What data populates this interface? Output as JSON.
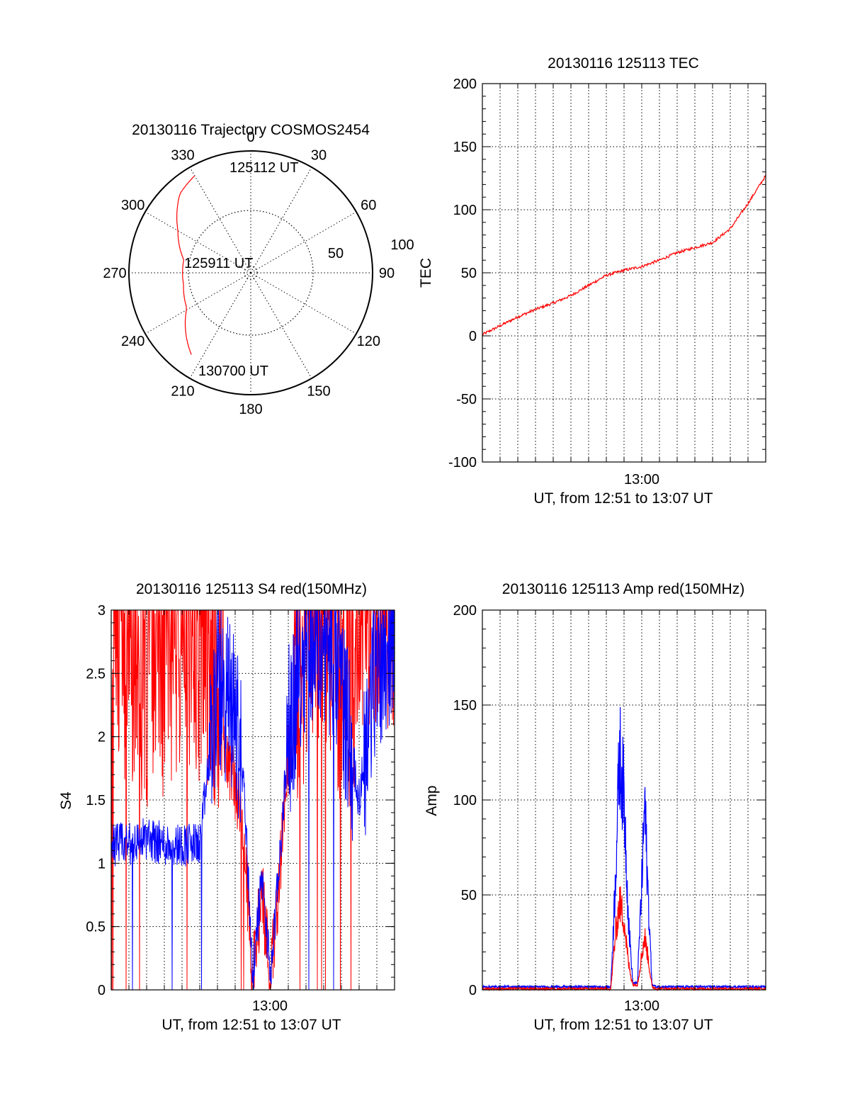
{
  "colors": {
    "red": "#ff0000",
    "blue": "#0000ff",
    "axis": "#000000"
  },
  "trajectory": {
    "title": "20130116 Trajectory COSMOS2454",
    "azimuth_labels": [
      "0",
      "30",
      "60",
      "90",
      "120",
      "150",
      "180",
      "210",
      "240",
      "270",
      "300",
      "330"
    ],
    "elevation_labels": [
      "50",
      "100"
    ],
    "start_label": "125112 UT",
    "mid_label": "125911 UT",
    "end_label": "130700 UT",
    "track": {
      "azimuth_deg": [
        330,
        318,
        300,
        281,
        270,
        260,
        241,
        216
      ],
      "zenith_norm": [
        0.92,
        0.87,
        0.69,
        0.56,
        0.56,
        0.56,
        0.6,
        0.83
      ]
    },
    "rings": [
      "solid",
      "dotted",
      "dotted"
    ]
  },
  "charts": {
    "tec": {
      "title": "20130116 125113 TEC",
      "ylabel": "TEC",
      "xlabel": "UT, from 12:51 to 13:07 UT",
      "xtick_label": "13:00",
      "yticks": [
        "200",
        "150",
        "100",
        "50",
        "0",
        "-50",
        "-100"
      ]
    },
    "s4": {
      "title": "20130116 125113 S4 red(150MHz)",
      "ylabel": "S4",
      "xlabel": "UT, from 12:51 to 13:07 UT",
      "xtick_label": "13:00",
      "yticks": [
        "3",
        "2.5",
        "2",
        "1.5",
        "1",
        "0.5",
        "0"
      ]
    },
    "amp": {
      "title": "20130116 125113 Amp red(150MHz)",
      "ylabel": "Amp",
      "xlabel": "UT, from 12:51 to 13:07 UT",
      "xtick_label": "13:00",
      "yticks": [
        "200",
        "150",
        "100",
        "50",
        "0"
      ]
    }
  },
  "chart_data": [
    {
      "type": "line",
      "title": "20130116 125113 TEC",
      "xlabel": "UT, from 12:51 to 13:07 UT",
      "ylabel": "TEC",
      "xlim": [
        "12:51",
        "13:07"
      ],
      "ylim": [
        -100,
        200
      ],
      "grid": true,
      "series": [
        {
          "color": "red",
          "x": [
            "12:51",
            "12:52",
            "12:53",
            "12:54",
            "12:55",
            "12:56",
            "12:57",
            "12:58",
            "12:59",
            "13:00",
            "13:01",
            "13:02",
            "13:03",
            "13:04",
            "13:05",
            "13:06",
            "13:07"
          ],
          "y": [
            1,
            8,
            15,
            21,
            26,
            32,
            40,
            48,
            52,
            55,
            60,
            66,
            70,
            74,
            85,
            105,
            127
          ]
        }
      ]
    },
    {
      "type": "line",
      "title": "20130116 125113 S4 red(150MHz)",
      "xlabel": "UT, from 12:51 to 13:07 UT",
      "ylabel": "S4",
      "xlim": [
        "12:51",
        "13:07"
      ],
      "ylim": [
        0,
        3
      ],
      "grid": true,
      "series": [
        {
          "color": "red",
          "x": [
            "12:51:00",
            "12:52:00",
            "12:53:00",
            "12:54:00",
            "12:55:00",
            "12:56:00",
            "12:57:00",
            "12:58:00",
            "12:58:30",
            "12:59:00",
            "12:59:30",
            "13:00:00",
            "13:00:30",
            "13:01:00",
            "13:02:00",
            "13:03:00",
            "13:04:00",
            "13:05:00",
            "13:06:00",
            "13:07:00"
          ],
          "y": [
            2.6,
            2.4,
            2.2,
            2.3,
            2.5,
            2.4,
            2.2,
            1.6,
            1.2,
            0.1,
            0.8,
            0.1,
            0.9,
            1.8,
            2.5,
            2.7,
            2.2,
            2.3,
            2.9,
            2.8
          ]
        },
        {
          "color": "blue",
          "x": [
            "12:51:00",
            "12:52:00",
            "12:53:00",
            "12:54:00",
            "12:55:00",
            "12:56:00",
            "12:57:00",
            "12:58:00",
            "12:58:30",
            "12:59:00",
            "12:59:30",
            "13:00:00",
            "13:00:30",
            "13:01:00",
            "13:02:00",
            "13:03:00",
            "13:04:00",
            "13:05:00",
            "13:06:00",
            "13:07:00"
          ],
          "y": [
            1.15,
            1.15,
            1.2,
            1.15,
            1.15,
            1.15,
            2.4,
            2.2,
            1.6,
            0.1,
            0.9,
            0.1,
            1.0,
            2.0,
            2.8,
            2.8,
            2.4,
            1.5,
            2.6,
            2.8
          ]
        }
      ]
    },
    {
      "type": "line",
      "title": "20130116 125113 Amp red(150MHz)",
      "xlabel": "UT, from 12:51 to 13:07 UT",
      "ylabel": "Amp",
      "xlim": [
        "12:51",
        "13:07"
      ],
      "ylim": [
        0,
        200
      ],
      "grid": true,
      "series": [
        {
          "color": "blue",
          "x": [
            "12:51:00",
            "12:58:15",
            "12:58:30",
            "12:58:45",
            "12:59:00",
            "12:59:15",
            "12:59:30",
            "12:59:45",
            "13:00:00",
            "13:00:10",
            "13:00:20",
            "13:00:35",
            "13:00:50",
            "13:07:00"
          ],
          "y": [
            1,
            1,
            60,
            135,
            110,
            40,
            3,
            3,
            60,
            107,
            60,
            2,
            1,
            1
          ]
        },
        {
          "color": "red",
          "x": [
            "12:51:00",
            "12:58:15",
            "12:58:30",
            "12:58:45",
            "12:59:00",
            "12:59:15",
            "12:59:30",
            "12:59:45",
            "13:00:00",
            "13:00:10",
            "13:00:20",
            "13:00:35",
            "13:00:50",
            "13:07:00"
          ],
          "y": [
            0,
            0,
            30,
            50,
            40,
            15,
            2,
            2,
            20,
            30,
            20,
            1,
            0,
            0
          ]
        }
      ]
    }
  ]
}
